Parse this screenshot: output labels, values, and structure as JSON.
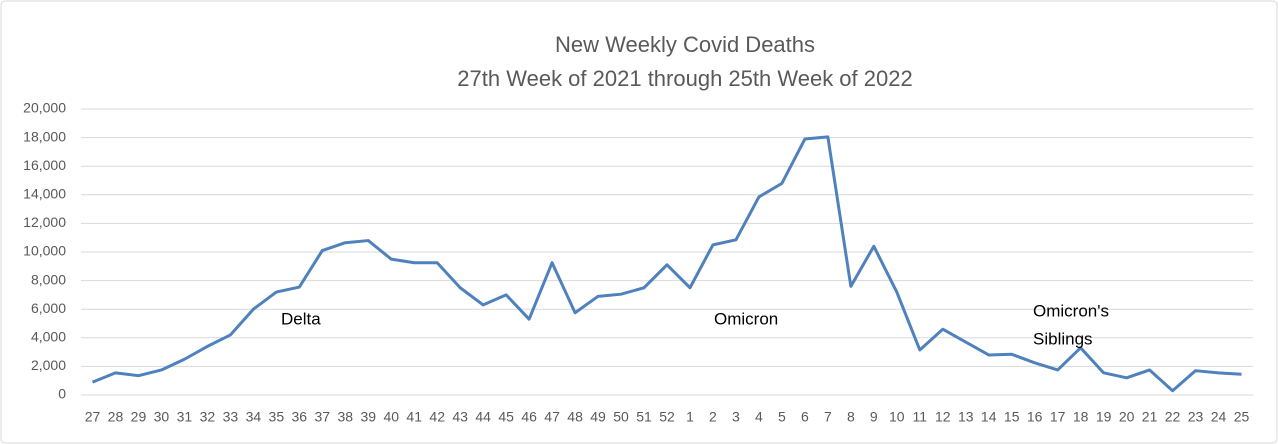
{
  "chart_data": {
    "type": "line",
    "title": "New Weekly Covid Deaths",
    "subtitle": "27th Week of 2021 through 25th Week of 2022",
    "categories": [
      "27",
      "28",
      "29",
      "30",
      "31",
      "32",
      "33",
      "34",
      "35",
      "36",
      "37",
      "38",
      "39",
      "40",
      "41",
      "42",
      "43",
      "44",
      "45",
      "46",
      "47",
      "48",
      "49",
      "50",
      "51",
      "52",
      "1",
      "2",
      "3",
      "4",
      "5",
      "6",
      "7",
      "8",
      "9",
      "10",
      "11",
      "12",
      "13",
      "14",
      "15",
      "16",
      "17",
      "18",
      "19",
      "20",
      "21",
      "22",
      "23",
      "24",
      "25"
    ],
    "series": [
      {
        "name": "New Weekly Covid Deaths",
        "color": "#4f81bd",
        "values": [
          900,
          1550,
          1350,
          1750,
          2500,
          3400,
          4200,
          6000,
          7200,
          7550,
          10100,
          10650,
          10800,
          9500,
          9250,
          9250,
          7500,
          6300,
          7000,
          5300,
          9250,
          5750,
          6900,
          7050,
          7500,
          9100,
          7500,
          10500,
          10850,
          13850,
          14800,
          17900,
          18050,
          7600,
          10400,
          7200,
          3150,
          4600,
          3700,
          2800,
          2850,
          2250,
          1750,
          3300,
          1550,
          1200,
          1750,
          300,
          1700,
          1550,
          1450
        ]
      }
    ],
    "ylim": [
      0,
      20000
    ],
    "yticks": [
      0,
      {
        "value": 2000,
        "label": "2,000"
      },
      {
        "value": 4000,
        "label": "4,000"
      },
      {
        "value": 6000,
        "label": "6,000"
      },
      {
        "value": 8000,
        "label": "8,000"
      },
      {
        "value": 10000,
        "label": "10,000"
      },
      {
        "value": 12000,
        "label": "12,000"
      },
      {
        "value": 14000,
        "label": "14,000"
      },
      {
        "value": 16000,
        "label": "16,000"
      },
      {
        "value": 18000,
        "label": "18,000"
      },
      {
        "value": 20000,
        "label": "20,000"
      }
    ],
    "grid": true,
    "annotations": [
      {
        "lines": [
          "Delta"
        ]
      },
      {
        "lines": [
          "Omicron"
        ]
      },
      {
        "lines": [
          "Omicron's",
          "Siblings"
        ]
      }
    ]
  }
}
